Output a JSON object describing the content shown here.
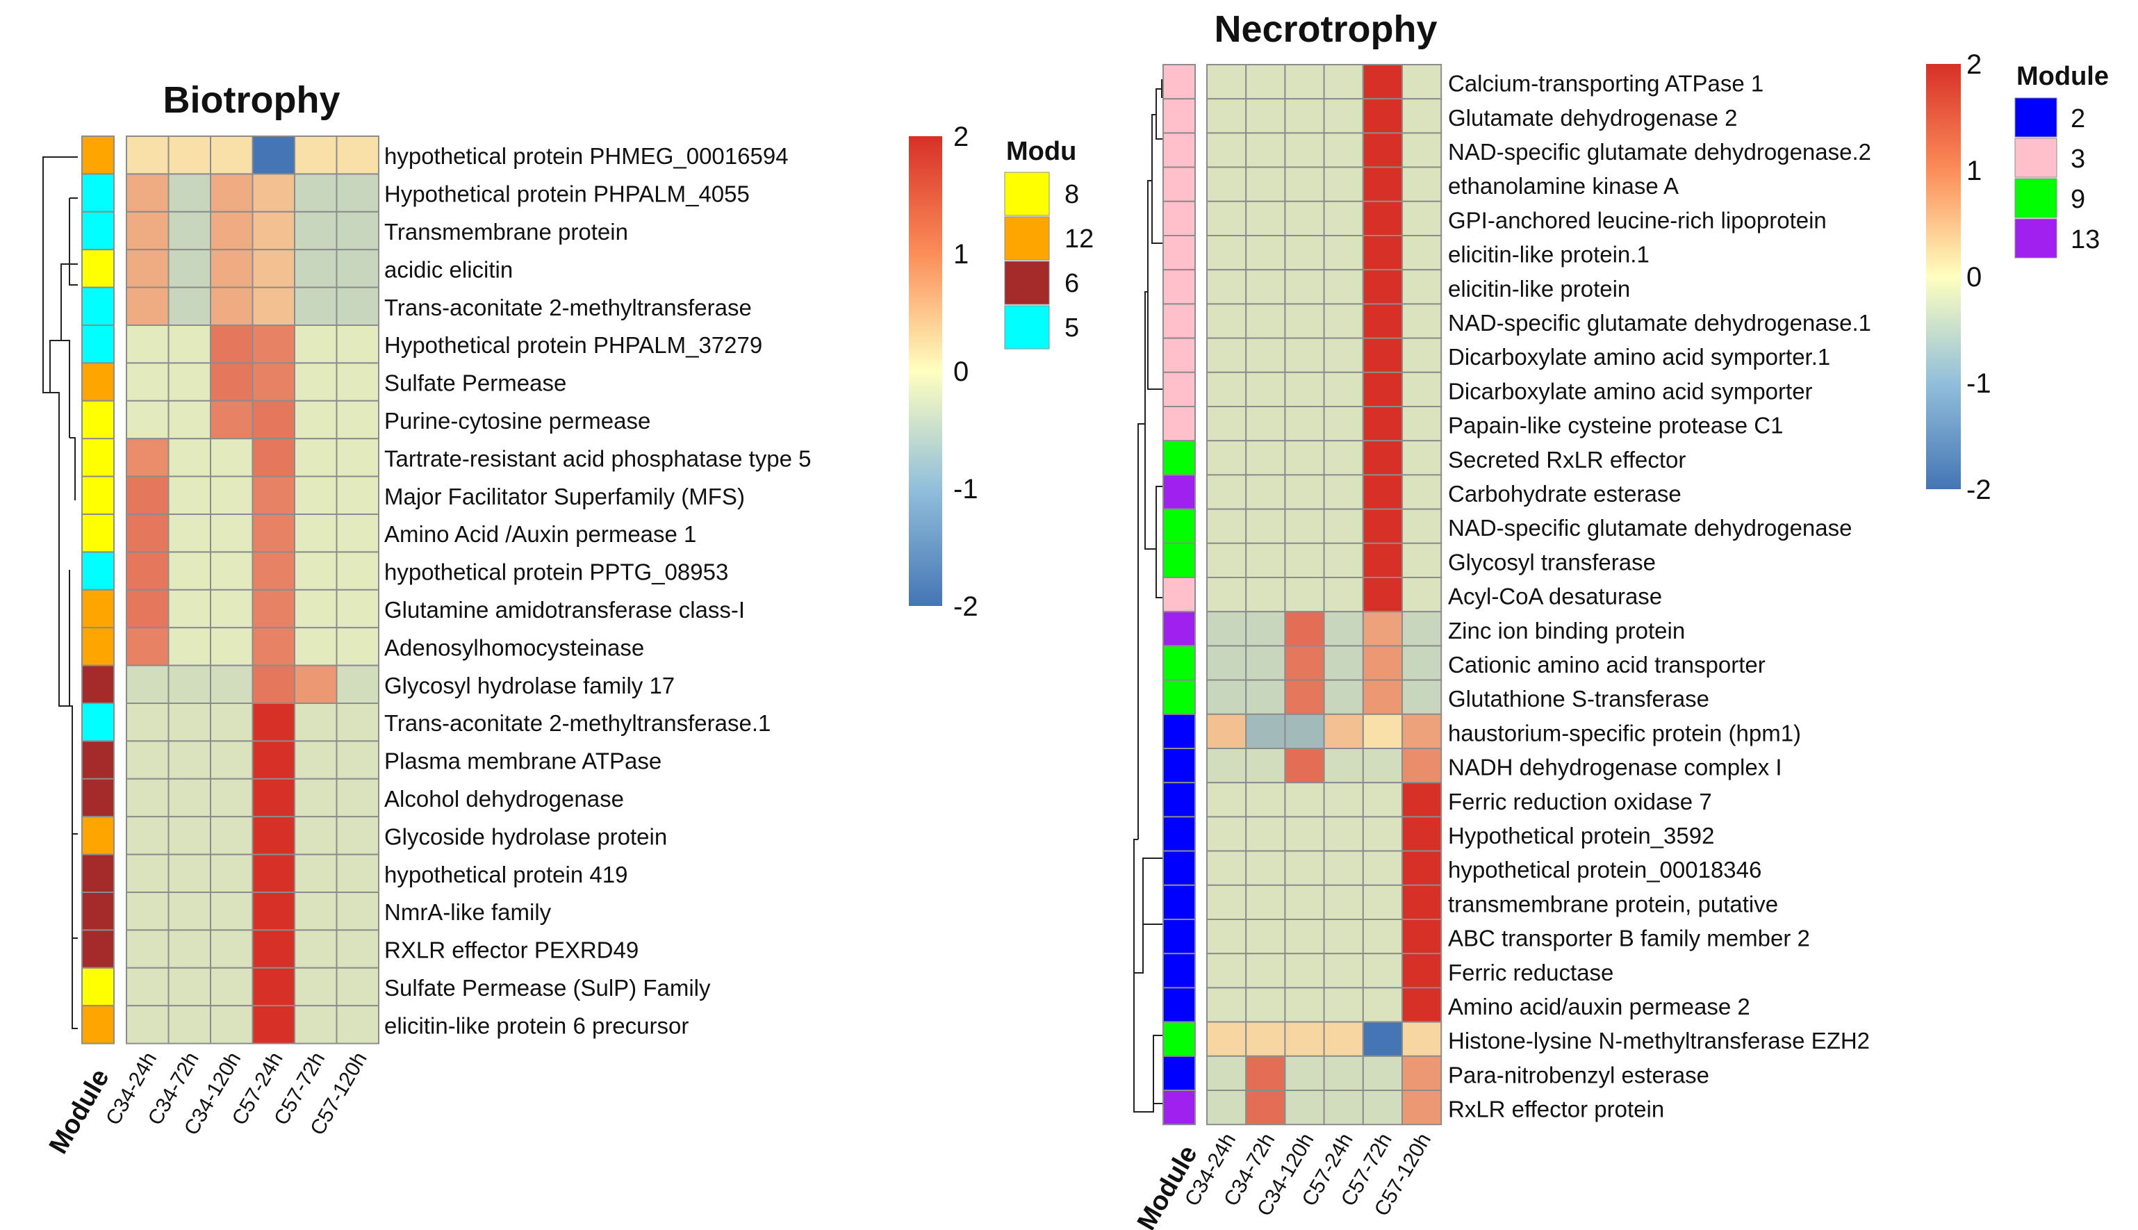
{
  "chart_data": [
    {
      "type": "heatmap",
      "title": "Biotrophy",
      "module_axis_label": "Module",
      "columns": [
        "C34-24h",
        "C34-72h",
        "C34-120h",
        "C57-24h",
        "C57-72h",
        "C57-120h"
      ],
      "rows": [
        {
          "label": "hypothetical protein PHMEG_00016594",
          "module": "12",
          "values": [
            0.3,
            0.3,
            0.3,
            -2.0,
            0.3,
            0.3
          ]
        },
        {
          "label": "Hypothetical protein PHPALM_4055",
          "module": "5",
          "values": [
            0.8,
            -0.6,
            0.8,
            0.6,
            -0.6,
            -0.6
          ]
        },
        {
          "label": "Transmembrane protein",
          "module": "5",
          "values": [
            0.8,
            -0.6,
            0.8,
            0.6,
            -0.6,
            -0.6
          ]
        },
        {
          "label": "acidic elicitin",
          "module": "8",
          "values": [
            0.8,
            -0.6,
            0.8,
            0.6,
            -0.6,
            -0.6
          ]
        },
        {
          "label": "Trans-aconitate 2-methyltransferase",
          "module": "5",
          "values": [
            0.8,
            -0.6,
            0.8,
            0.6,
            -0.6,
            -0.6
          ]
        },
        {
          "label": "Hypothetical protein PHPALM_37279",
          "module": "5",
          "values": [
            -0.3,
            -0.3,
            1.3,
            1.2,
            -0.3,
            -0.3
          ]
        },
        {
          "label": "Sulfate Permease",
          "module": "12",
          "values": [
            -0.3,
            -0.3,
            1.3,
            1.2,
            -0.3,
            -0.3
          ]
        },
        {
          "label": "Purine-cytosine permease",
          "module": "8",
          "values": [
            -0.3,
            -0.3,
            1.2,
            1.3,
            -0.3,
            -0.3
          ]
        },
        {
          "label": "Tartrate-resistant acid phosphatase type 5",
          "module": "8",
          "values": [
            1.1,
            -0.3,
            -0.3,
            1.3,
            -0.3,
            -0.3
          ]
        },
        {
          "label": "Major Facilitator Superfamily (MFS)",
          "module": "8",
          "values": [
            1.3,
            -0.3,
            -0.3,
            1.2,
            -0.3,
            -0.3
          ]
        },
        {
          "label": "Amino Acid /Auxin permease 1",
          "module": "8",
          "values": [
            1.3,
            -0.3,
            -0.3,
            1.2,
            -0.3,
            -0.3
          ]
        },
        {
          "label": "hypothetical protein PPTG_08953",
          "module": "5",
          "values": [
            1.3,
            -0.3,
            -0.3,
            1.2,
            -0.3,
            -0.3
          ]
        },
        {
          "label": "Glutamine amidotransferase class-I",
          "module": "12",
          "values": [
            1.3,
            -0.3,
            -0.3,
            1.2,
            -0.3,
            -0.3
          ]
        },
        {
          "label": "Adenosylhomocysteinase",
          "module": "12",
          "values": [
            1.2,
            -0.3,
            -0.3,
            1.2,
            -0.3,
            -0.3
          ]
        },
        {
          "label": "Glycosyl hydrolase family 17",
          "module": "6",
          "values": [
            -0.5,
            -0.5,
            -0.5,
            1.3,
            1.0,
            -0.5
          ]
        },
        {
          "label": "Trans-aconitate 2-methyltransferase.1",
          "module": "5",
          "values": [
            -0.4,
            -0.4,
            -0.4,
            2.0,
            -0.4,
            -0.4
          ]
        },
        {
          "label": "Plasma membrane ATPase",
          "module": "6",
          "values": [
            -0.4,
            -0.4,
            -0.4,
            2.0,
            -0.4,
            -0.4
          ]
        },
        {
          "label": "Alcohol dehydrogenase",
          "module": "6",
          "values": [
            -0.4,
            -0.4,
            -0.4,
            2.0,
            -0.4,
            -0.4
          ]
        },
        {
          "label": "Glycoside hydrolase protein",
          "module": "12",
          "values": [
            -0.4,
            -0.4,
            -0.4,
            2.0,
            -0.4,
            -0.4
          ]
        },
        {
          "label": "hypothetical protein 419",
          "module": "6",
          "values": [
            -0.4,
            -0.4,
            -0.4,
            2.0,
            -0.4,
            -0.4
          ]
        },
        {
          "label": "NmrA-like family",
          "module": "6",
          "values": [
            -0.4,
            -0.4,
            -0.4,
            2.0,
            -0.4,
            -0.4
          ]
        },
        {
          "label": "RXLR effector PEXRD49",
          "module": "6",
          "values": [
            -0.4,
            -0.4,
            -0.4,
            2.0,
            -0.4,
            -0.4
          ]
        },
        {
          "label": "Sulfate Permease (SulP) Family",
          "module": "8",
          "values": [
            -0.4,
            -0.4,
            -0.4,
            2.0,
            -0.4,
            -0.4
          ]
        },
        {
          "label": "elicitin-like protein 6 precursor",
          "module": "12",
          "values": [
            -0.4,
            -0.4,
            -0.4,
            2.0,
            -0.4,
            -0.4
          ]
        }
      ],
      "module_legend": {
        "title": "Modu",
        "items": [
          {
            "label": "8",
            "color": "#FFFF00"
          },
          {
            "label": "12",
            "color": "#FFA500"
          },
          {
            "label": "6",
            "color": "#A52A2A"
          },
          {
            "label": "5",
            "color": "#00FFFF"
          }
        ]
      },
      "color_scale": {
        "ticks": [
          "2",
          "1",
          "0",
          "-1",
          "-2"
        ],
        "min": -2,
        "max": 2,
        "colors": [
          "#4575B4",
          "#FFFFBF",
          "#D73027"
        ]
      }
    },
    {
      "type": "heatmap",
      "title": "Necrotrophy",
      "module_axis_label": "Module",
      "columns": [
        "C34-24h",
        "C34-72h",
        "C34-120h",
        "C57-24h",
        "C57-72h",
        "C57-120h"
      ],
      "rows": [
        {
          "label": "Calcium-transporting ATPase 1",
          "module": "3",
          "values": [
            -0.4,
            -0.4,
            -0.4,
            -0.4,
            2.0,
            -0.4
          ]
        },
        {
          "label": "Glutamate dehydrogenase 2",
          "module": "3",
          "values": [
            -0.4,
            -0.4,
            -0.4,
            -0.4,
            2.0,
            -0.4
          ]
        },
        {
          "label": "NAD-specific glutamate dehydrogenase.2",
          "module": "3",
          "values": [
            -0.4,
            -0.4,
            -0.4,
            -0.4,
            2.0,
            -0.4
          ]
        },
        {
          "label": "ethanolamine kinase A",
          "module": "3",
          "values": [
            -0.4,
            -0.4,
            -0.4,
            -0.4,
            2.0,
            -0.4
          ]
        },
        {
          "label": "GPI-anchored leucine-rich lipoprotein",
          "module": "3",
          "values": [
            -0.4,
            -0.4,
            -0.4,
            -0.4,
            2.0,
            -0.4
          ]
        },
        {
          "label": "elicitin-like protein.1",
          "module": "3",
          "values": [
            -0.4,
            -0.4,
            -0.4,
            -0.4,
            2.0,
            -0.4
          ]
        },
        {
          "label": "elicitin-like protein",
          "module": "3",
          "values": [
            -0.4,
            -0.4,
            -0.4,
            -0.4,
            2.0,
            -0.4
          ]
        },
        {
          "label": "NAD-specific glutamate dehydrogenase.1",
          "module": "3",
          "values": [
            -0.4,
            -0.4,
            -0.4,
            -0.4,
            2.0,
            -0.4
          ]
        },
        {
          "label": "Dicarboxylate amino acid symporter.1",
          "module": "3",
          "values": [
            -0.4,
            -0.4,
            -0.4,
            -0.4,
            2.0,
            -0.4
          ]
        },
        {
          "label": "Dicarboxylate amino acid symporter",
          "module": "3",
          "values": [
            -0.4,
            -0.4,
            -0.4,
            -0.4,
            2.0,
            -0.4
          ]
        },
        {
          "label": "Papain-like cysteine protease C1",
          "module": "3",
          "values": [
            -0.4,
            -0.4,
            -0.4,
            -0.4,
            2.0,
            -0.4
          ]
        },
        {
          "label": "Secreted RxLR effector",
          "module": "9",
          "values": [
            -0.4,
            -0.4,
            -0.4,
            -0.4,
            2.0,
            -0.4
          ]
        },
        {
          "label": "Carbohydrate esterase",
          "module": "13",
          "values": [
            -0.4,
            -0.4,
            -0.4,
            -0.4,
            2.0,
            -0.4
          ]
        },
        {
          "label": "NAD-specific glutamate dehydrogenase",
          "module": "9",
          "values": [
            -0.4,
            -0.4,
            -0.4,
            -0.4,
            2.0,
            -0.4
          ]
        },
        {
          "label": "Glycosyl transferase",
          "module": "9",
          "values": [
            -0.4,
            -0.4,
            -0.4,
            -0.4,
            2.0,
            -0.4
          ]
        },
        {
          "label": "Acyl-CoA desaturase",
          "module": "3",
          "values": [
            -0.4,
            -0.4,
            -0.4,
            -0.4,
            2.0,
            -0.4
          ]
        },
        {
          "label": "Zinc ion binding protein",
          "module": "13",
          "values": [
            -0.6,
            -0.6,
            1.4,
            -0.6,
            0.9,
            -0.6
          ]
        },
        {
          "label": "Cationic amino acid transporter",
          "module": "9",
          "values": [
            -0.6,
            -0.6,
            1.3,
            -0.6,
            1.0,
            -0.6
          ]
        },
        {
          "label": "Glutathione S-transferase",
          "module": "9",
          "values": [
            -0.6,
            -0.6,
            1.3,
            -0.6,
            1.0,
            -0.6
          ]
        },
        {
          "label": "haustorium-specific  protein (hpm1)",
          "module": "2",
          "values": [
            0.6,
            -1.0,
            -1.0,
            0.6,
            0.3,
            0.9
          ]
        },
        {
          "label": "NADH dehydrogenase complex I",
          "module": "2",
          "values": [
            -0.5,
            -0.5,
            1.4,
            -0.5,
            -0.5,
            1.1
          ]
        },
        {
          "label": "Ferric reduction oxidase 7",
          "module": "2",
          "values": [
            -0.4,
            -0.4,
            -0.4,
            -0.4,
            -0.4,
            2.0
          ]
        },
        {
          "label": "Hypothetical protein_3592",
          "module": "2",
          "values": [
            -0.4,
            -0.4,
            -0.4,
            -0.4,
            -0.4,
            2.0
          ]
        },
        {
          "label": "hypothetical protein_00018346",
          "module": "2",
          "values": [
            -0.4,
            -0.4,
            -0.4,
            -0.4,
            -0.4,
            2.0
          ]
        },
        {
          "label": "transmembrane protein, putative",
          "module": "2",
          "values": [
            -0.4,
            -0.4,
            -0.4,
            -0.4,
            -0.4,
            2.0
          ]
        },
        {
          "label": "ABC transporter B family member 2",
          "module": "2",
          "values": [
            -0.4,
            -0.4,
            -0.4,
            -0.4,
            -0.4,
            2.0
          ]
        },
        {
          "label": "Ferric reductase",
          "module": "2",
          "values": [
            -0.4,
            -0.4,
            -0.4,
            -0.4,
            -0.4,
            2.0
          ]
        },
        {
          "label": "Amino acid/auxin permease 2",
          "module": "2",
          "values": [
            -0.4,
            -0.4,
            -0.4,
            -0.4,
            -0.4,
            2.0
          ]
        },
        {
          "label": "Histone-lysine N-methyltransferase EZH2",
          "module": "9",
          "values": [
            0.4,
            0.4,
            0.4,
            0.4,
            -2.0,
            0.4
          ]
        },
        {
          "label": "Para-nitrobenzyl esterase",
          "module": "2",
          "values": [
            -0.5,
            1.4,
            -0.5,
            -0.5,
            -0.5,
            1.0
          ]
        },
        {
          "label": "RxLR effector protein",
          "module": "13",
          "values": [
            -0.5,
            1.4,
            -0.5,
            -0.5,
            -0.5,
            1.0
          ]
        }
      ],
      "module_legend": {
        "title": "Module",
        "items": [
          {
            "label": "2",
            "color": "#0000FF"
          },
          {
            "label": "3",
            "color": "#FFC0CB"
          },
          {
            "label": "9",
            "color": "#00FF00"
          },
          {
            "label": "13",
            "color": "#A020F0"
          }
        ]
      },
      "color_scale": {
        "ticks": [
          "2",
          "1",
          "0",
          "-1",
          "-2"
        ],
        "min": -2,
        "max": 2,
        "colors": [
          "#4575B4",
          "#FFFFBF",
          "#D73027"
        ]
      }
    }
  ]
}
